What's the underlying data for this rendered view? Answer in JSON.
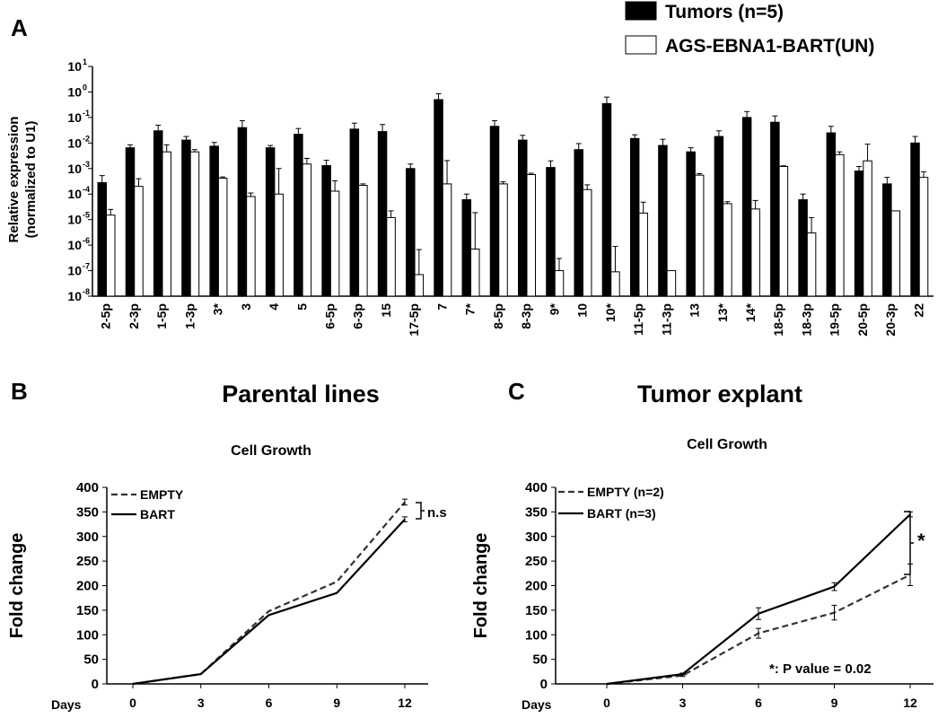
{
  "panels": {
    "a_letter": "A",
    "b_letter": "B",
    "c_letter": "C",
    "b_title": "Parental lines",
    "c_title": "Tumor explant",
    "b_subtitle": "Cell Growth",
    "c_subtitle": "Cell Growth",
    "b_annotation": "n.s",
    "c_annotation": "*",
    "c_pvalue": "*: P value = 0.02"
  },
  "chart_data": [
    {
      "type": "bar",
      "panel": "A",
      "ylabel_line1": "Relative expression",
      "ylabel_line2": "(normalized to U1)",
      "yscale": "log",
      "ylim": [
        1e-08,
        10
      ],
      "ytick_exponents": [
        "1",
        "0",
        "-1",
        "-2",
        "-3",
        "-4",
        "-5",
        "-6",
        "-7",
        "-8"
      ],
      "categories": [
        "2-5p",
        "2-3p",
        "1-5p",
        "1-3p",
        "3*",
        "3",
        "4",
        "5",
        "6-5p",
        "6-3p",
        "15",
        "17-5p",
        "7",
        "7*",
        "8-5p",
        "8-3p",
        "9*",
        "10",
        "10*",
        "11-5p",
        "11-3p",
        "13",
        "13*",
        "14*",
        "18-5p",
        "18-3p",
        "19-5p",
        "20-5p",
        "20-3p",
        "22"
      ],
      "series": [
        {
          "name": "Tumors (n=5)",
          "color": "#000000",
          "values": [
            0.00028,
            0.0065,
            0.03,
            0.013,
            0.0075,
            0.04,
            0.0065,
            0.022,
            0.0013,
            0.035,
            0.028,
            0.001,
            0.5,
            6e-05,
            0.045,
            0.013,
            0.0011,
            0.0055,
            0.35,
            0.015,
            0.008,
            0.0045,
            0.018,
            0.1,
            0.065,
            6e-05,
            0.025,
            0.0008,
            0.00025,
            0.01
          ],
          "errors": [
            0.00025,
            0.002,
            0.02,
            0.005,
            0.003,
            0.035,
            0.0015,
            0.015,
            0.0008,
            0.025,
            0.025,
            0.0005,
            0.35,
            4e-05,
            0.03,
            0.007,
            0.0009,
            0.004,
            0.28,
            0.006,
            0.006,
            0.002,
            0.012,
            0.07,
            0.05,
            4e-05,
            0.02,
            0.0004,
            0.0002,
            0.008
          ]
        },
        {
          "name": "AGS-EBNA1-BART(UN)",
          "color": "#ffffff",
          "values": [
            1.5e-05,
            0.0002,
            0.0045,
            0.0045,
            0.00042,
            8e-05,
            0.0001,
            0.0015,
            0.00013,
            0.00022,
            1.2e-05,
            7e-08,
            0.00025,
            7e-07,
            0.00025,
            0.00058,
            1e-07,
            0.00015,
            9e-08,
            1.8e-05,
            1e-07,
            0.00055,
            4.2e-05,
            2.6e-05,
            0.0012,
            3e-06,
            0.0035,
            0.002,
            2.2e-05,
            0.00045
          ],
          "errors": [
            1e-05,
            0.0002,
            0.004,
            0.001,
            5e-05,
            3e-05,
            0.0009,
            0.001,
            0.0002,
            3e-05,
            1e-05,
            6e-07,
            0.0018,
            1.8e-05,
            5e-05,
            7e-05,
            2e-07,
            8e-05,
            8e-07,
            3e-05,
            0,
            8e-05,
            8e-06,
            3e-05,
            8e-05,
            9e-06,
            0.001,
            0.007,
            0,
            0.0003
          ]
        }
      ]
    },
    {
      "type": "line",
      "panel": "B",
      "xlabel": "Days",
      "ylabel": "Fold change",
      "x": [
        0,
        3,
        6,
        9,
        12
      ],
      "ylim": [
        0,
        400
      ],
      "yticks": [
        0,
        50,
        100,
        150,
        200,
        250,
        300,
        350,
        400
      ],
      "series": [
        {
          "name": "EMPTY",
          "style": "dashed",
          "values": [
            0,
            20,
            148,
            208,
            370
          ],
          "errors": [
            0,
            0,
            0,
            0,
            6
          ]
        },
        {
          "name": "BART",
          "style": "solid",
          "values": [
            0,
            20,
            140,
            185,
            335
          ],
          "errors": [
            0,
            0,
            0,
            0,
            5
          ]
        }
      ]
    },
    {
      "type": "line",
      "panel": "C",
      "xlabel": "Days",
      "ylabel": "Fold change",
      "x": [
        0,
        3,
        6,
        9,
        12
      ],
      "ylim": [
        0,
        400
      ],
      "yticks": [
        0,
        50,
        100,
        150,
        200,
        250,
        300,
        350,
        400
      ],
      "series": [
        {
          "name": "EMPTY (n=2)",
          "style": "dashed",
          "values": [
            0,
            17,
            103,
            145,
            222
          ],
          "errors": [
            0,
            2,
            10,
            15,
            22
          ]
        },
        {
          "name": "BART (n=3)",
          "style": "solid",
          "values": [
            0,
            20,
            143,
            198,
            345
          ],
          "errors": [
            0,
            2,
            12,
            8,
            5
          ]
        }
      ]
    }
  ]
}
